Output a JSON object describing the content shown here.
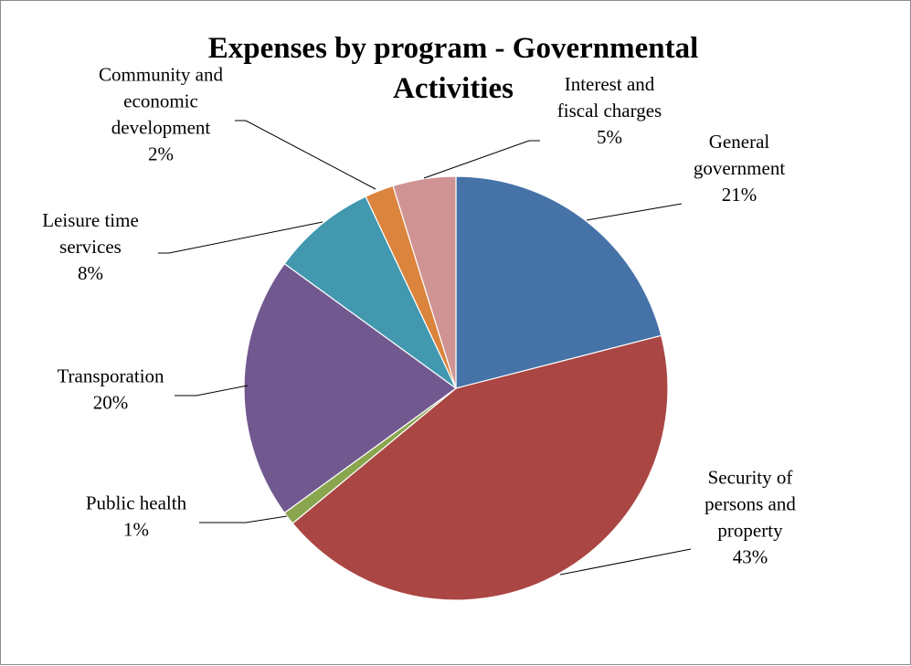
{
  "chart_data": {
    "type": "pie",
    "title": "Expenses by program - Governmental Activities",
    "title_lines": [
      "Expenses by program  - Governmental",
      "Activities"
    ],
    "legend": "none (data labels with leader lines)",
    "start_angle": "12 o'clock, clockwise",
    "slices": [
      {
        "name": "General government",
        "label_lines": [
          "General",
          "government"
        ],
        "percent_label": "21%",
        "value": 21,
        "color": "#4572A7"
      },
      {
        "name": "Security of persons and property",
        "label_lines": [
          "Security of",
          "persons and",
          "property"
        ],
        "percent_label": "43%",
        "value": 43,
        "color": "#AA4643"
      },
      {
        "name": "Public health",
        "label_lines": [
          "Public health"
        ],
        "percent_label": "1%",
        "value": 1,
        "color": "#89A54E"
      },
      {
        "name": "Transporation",
        "label_lines": [
          "Transporation"
        ],
        "percent_label": "20%",
        "value": 20,
        "color": "#71588F"
      },
      {
        "name": "Leisure time services",
        "label_lines": [
          "Leisure time",
          "services"
        ],
        "percent_label": "8%",
        "value": 8,
        "color": "#4198AF"
      },
      {
        "name": "Community and economic development",
        "label_lines": [
          "Community and",
          "economic",
          "development"
        ],
        "percent_label": "2%",
        "value": 2.2,
        "color": "#DB843D"
      },
      {
        "name": "Interest and fiscal charges",
        "label_lines": [
          "Interest and",
          "fiscal charges"
        ],
        "percent_label": "5%",
        "value": 4.8,
        "color": "#D09393"
      }
    ]
  }
}
